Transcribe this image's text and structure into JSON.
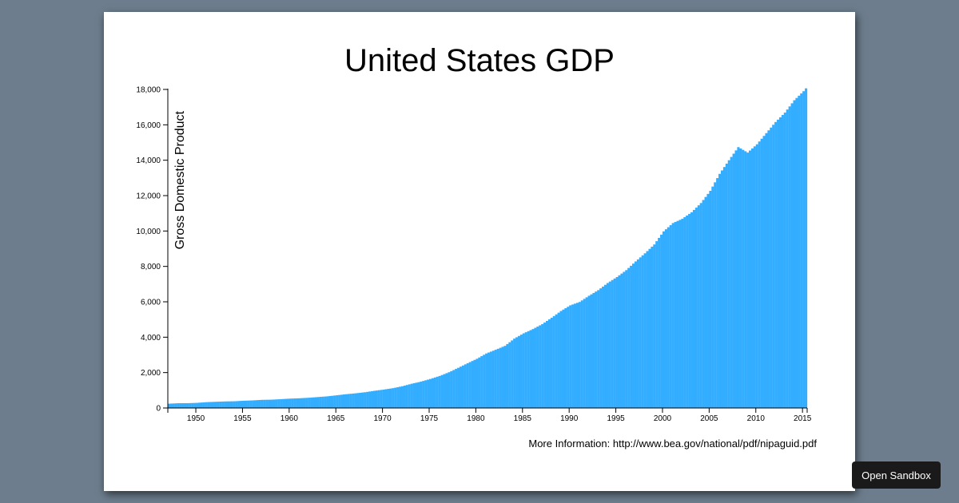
{
  "sandbox": {
    "label": "Open Sandbox"
  },
  "info": {
    "text": "More Information: http://www.bea.gov/national/pdf/nipaguid.pdf"
  },
  "colors": {
    "bar": "#33adff",
    "background": "#6d7d8d",
    "card": "#ffffff"
  },
  "chart_data": {
    "type": "bar",
    "title": "United States GDP",
    "xlabel": "",
    "ylabel": "Gross Domestic Product",
    "xlim": [
      1947,
      2015.5
    ],
    "ylim": [
      0,
      18000
    ],
    "yticks": [
      0,
      2000,
      4000,
      6000,
      8000,
      10000,
      12000,
      14000,
      16000,
      18000
    ],
    "ytick_labels": [
      "0",
      "2,000",
      "4,000",
      "6,000",
      "8,000",
      "10,000",
      "12,000",
      "14,000",
      "16,000",
      "18,000"
    ],
    "xticks": [
      1950,
      1955,
      1960,
      1965,
      1970,
      1975,
      1980,
      1985,
      1990,
      1995,
      2000,
      2005,
      2010,
      2015
    ],
    "xtick_labels": [
      "1950",
      "1955",
      "1960",
      "1965",
      "1970",
      "1975",
      "1980",
      "1985",
      "1990",
      "1995",
      "2000",
      "2005",
      "2010",
      "2015"
    ],
    "frequency": "quarterly",
    "start": 1947,
    "annual_values": {
      "years": [
        1947,
        1948,
        1949,
        1950,
        1951,
        1952,
        1953,
        1954,
        1955,
        1956,
        1957,
        1958,
        1959,
        1960,
        1961,
        1962,
        1963,
        1964,
        1965,
        1966,
        1967,
        1968,
        1969,
        1970,
        1971,
        1972,
        1973,
        1974,
        1975,
        1976,
        1977,
        1978,
        1979,
        1980,
        1981,
        1982,
        1983,
        1984,
        1985,
        1986,
        1987,
        1988,
        1989,
        1990,
        1991,
        1992,
        1993,
        1994,
        1995,
        1996,
        1997,
        1998,
        1999,
        2000,
        2001,
        2002,
        2003,
        2004,
        2005,
        2006,
        2007,
        2008,
        2009,
        2010,
        2011,
        2012,
        2013,
        2014,
        2015,
        2015.25
      ],
      "values": [
        243,
        270,
        272,
        290,
        330,
        350,
        370,
        380,
        410,
        430,
        460,
        470,
        500,
        530,
        550,
        580,
        620,
        660,
        720,
        780,
        830,
        890,
        970,
        1040,
        1120,
        1230,
        1370,
        1490,
        1640,
        1810,
        2020,
        2270,
        2530,
        2780,
        3080,
        3290,
        3510,
        3920,
        4220,
        4460,
        4740,
        5100,
        5480,
        5800,
        5990,
        6340,
        6660,
        7060,
        7400,
        7790,
        8280,
        8740,
        9240,
        9980,
        10450,
        10690,
        11060,
        11580,
        12270,
        13230,
        14000,
        14740,
        14430,
        14900,
        15530,
        16160,
        16690,
        17390,
        17900,
        18060
      ]
    }
  }
}
